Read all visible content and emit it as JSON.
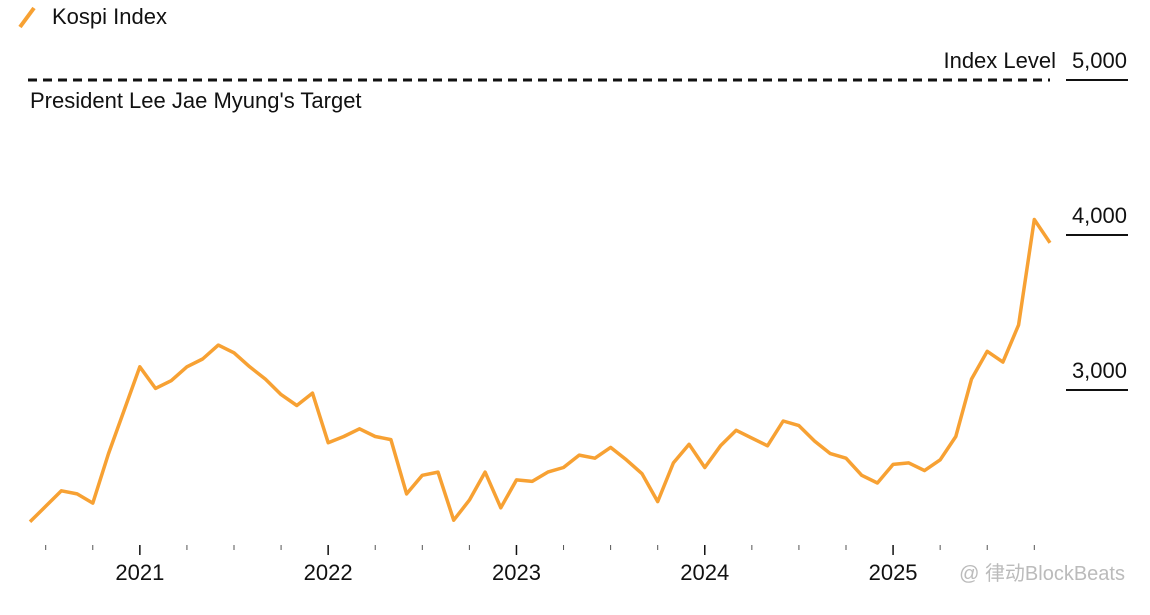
{
  "chart_data": {
    "type": "line",
    "title": "Kospi Index",
    "y_axis_label": "Index Level",
    "annotation": {
      "value": 5000,
      "label": "President Lee Jae Myung's Target"
    },
    "watermark": "@ 律动BlockBeats",
    "x": [
      "2020-06",
      "2020-07",
      "2020-08",
      "2020-09",
      "2020-10",
      "2020-11",
      "2020-12",
      "2021-01",
      "2021-02",
      "2021-03",
      "2021-04",
      "2021-05",
      "2021-06",
      "2021-07",
      "2021-08",
      "2021-09",
      "2021-10",
      "2021-11",
      "2021-12",
      "2022-01",
      "2022-02",
      "2022-03",
      "2022-04",
      "2022-05",
      "2022-06",
      "2022-07",
      "2022-08",
      "2022-09",
      "2022-10",
      "2022-11",
      "2022-12",
      "2023-01",
      "2023-02",
      "2023-03",
      "2023-04",
      "2023-05",
      "2023-06",
      "2023-07",
      "2023-08",
      "2023-09",
      "2023-10",
      "2023-11",
      "2023-12",
      "2024-01",
      "2024-02",
      "2024-03",
      "2024-04",
      "2024-05",
      "2024-06",
      "2024-07",
      "2024-08",
      "2024-09",
      "2024-10",
      "2024-11",
      "2024-12",
      "2025-01",
      "2025-02",
      "2025-03",
      "2025-04",
      "2025-05",
      "2025-06",
      "2025-07",
      "2025-08",
      "2025-09",
      "2025-10",
      "2025-11"
    ],
    "series": [
      {
        "name": "Kospi Index",
        "color": "#f7a133",
        "values": [
          2150,
          2250,
          2350,
          2330,
          2270,
          2590,
          2870,
          3150,
          3010,
          3060,
          3150,
          3200,
          3290,
          3240,
          3150,
          3070,
          2970,
          2900,
          2980,
          2660,
          2700,
          2750,
          2700,
          2680,
          2330,
          2450,
          2470,
          2160,
          2290,
          2470,
          2240,
          2420,
          2410,
          2470,
          2500,
          2580,
          2560,
          2630,
          2550,
          2460,
          2280,
          2530,
          2650,
          2500,
          2640,
          2740,
          2690,
          2640,
          2800,
          2770,
          2670,
          2590,
          2560,
          2450,
          2400,
          2520,
          2530,
          2480,
          2550,
          2700,
          3070,
          3250,
          3180,
          3420,
          4100,
          3950
        ]
      }
    ],
    "xlim": [
      "2020-06",
      "2025-11"
    ],
    "xticks": [
      {
        "value": "2021-01",
        "label": "2021"
      },
      {
        "value": "2022-01",
        "label": "2022"
      },
      {
        "value": "2023-01",
        "label": "2023"
      },
      {
        "value": "2024-01",
        "label": "2024"
      },
      {
        "value": "2025-01",
        "label": "2025"
      }
    ],
    "xminorticks": [
      "2020-07",
      "2020-10",
      "2021-04",
      "2021-07",
      "2021-10",
      "2022-04",
      "2022-07",
      "2022-10",
      "2023-04",
      "2023-07",
      "2023-10",
      "2024-04",
      "2024-07",
      "2024-10",
      "2025-04",
      "2025-07",
      "2025-10"
    ],
    "ylim": [
      2000,
      5000
    ],
    "yticks": [
      {
        "value": 3000,
        "label": "3,000"
      },
      {
        "value": 4000,
        "label": "4,000"
      },
      {
        "value": 5000,
        "label": "5,000"
      }
    ]
  }
}
